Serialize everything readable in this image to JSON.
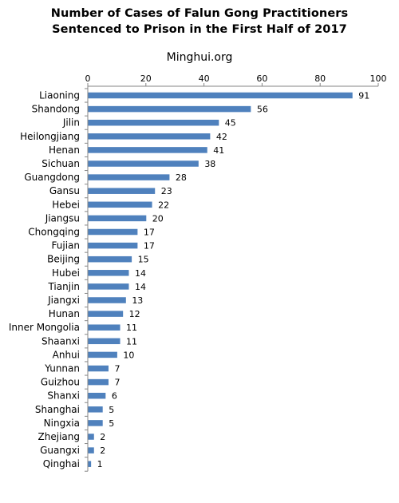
{
  "chart_data": {
    "type": "bar",
    "orientation": "horizontal",
    "title_lines": [
      "Number of Cases of Falun Gong Practitioners",
      "Sentenced to Prison in the First Half of 2017"
    ],
    "subtitle": "Minghui.org",
    "xlabel": "",
    "ylabel": "",
    "xlim": [
      0,
      100
    ],
    "xticks": [
      0,
      20,
      40,
      60,
      80,
      100
    ],
    "grid": false,
    "bar_color": "#4F81BD",
    "categories": [
      "Liaoning",
      "Shandong",
      "Jilin",
      "Heilongjiang",
      "Henan",
      "Sichuan",
      "Guangdong",
      "Gansu",
      "Hebei",
      "Jiangsu",
      "Chongqing",
      "Fujian",
      "Beijing",
      "Hubei",
      "Tianjin",
      "Jiangxi",
      "Hunan",
      "Inner Mongolia",
      "Shaanxi",
      "Anhui",
      "Yunnan",
      "Guizhou",
      "Shanxi",
      "Shanghai",
      "Ningxia",
      "Zhejiang",
      "Guangxi",
      "Qinghai"
    ],
    "values": [
      91,
      56,
      45,
      42,
      41,
      38,
      28,
      23,
      22,
      20,
      17,
      17,
      15,
      14,
      14,
      13,
      12,
      11,
      11,
      10,
      7,
      7,
      6,
      5,
      5,
      2,
      2,
      1
    ]
  }
}
